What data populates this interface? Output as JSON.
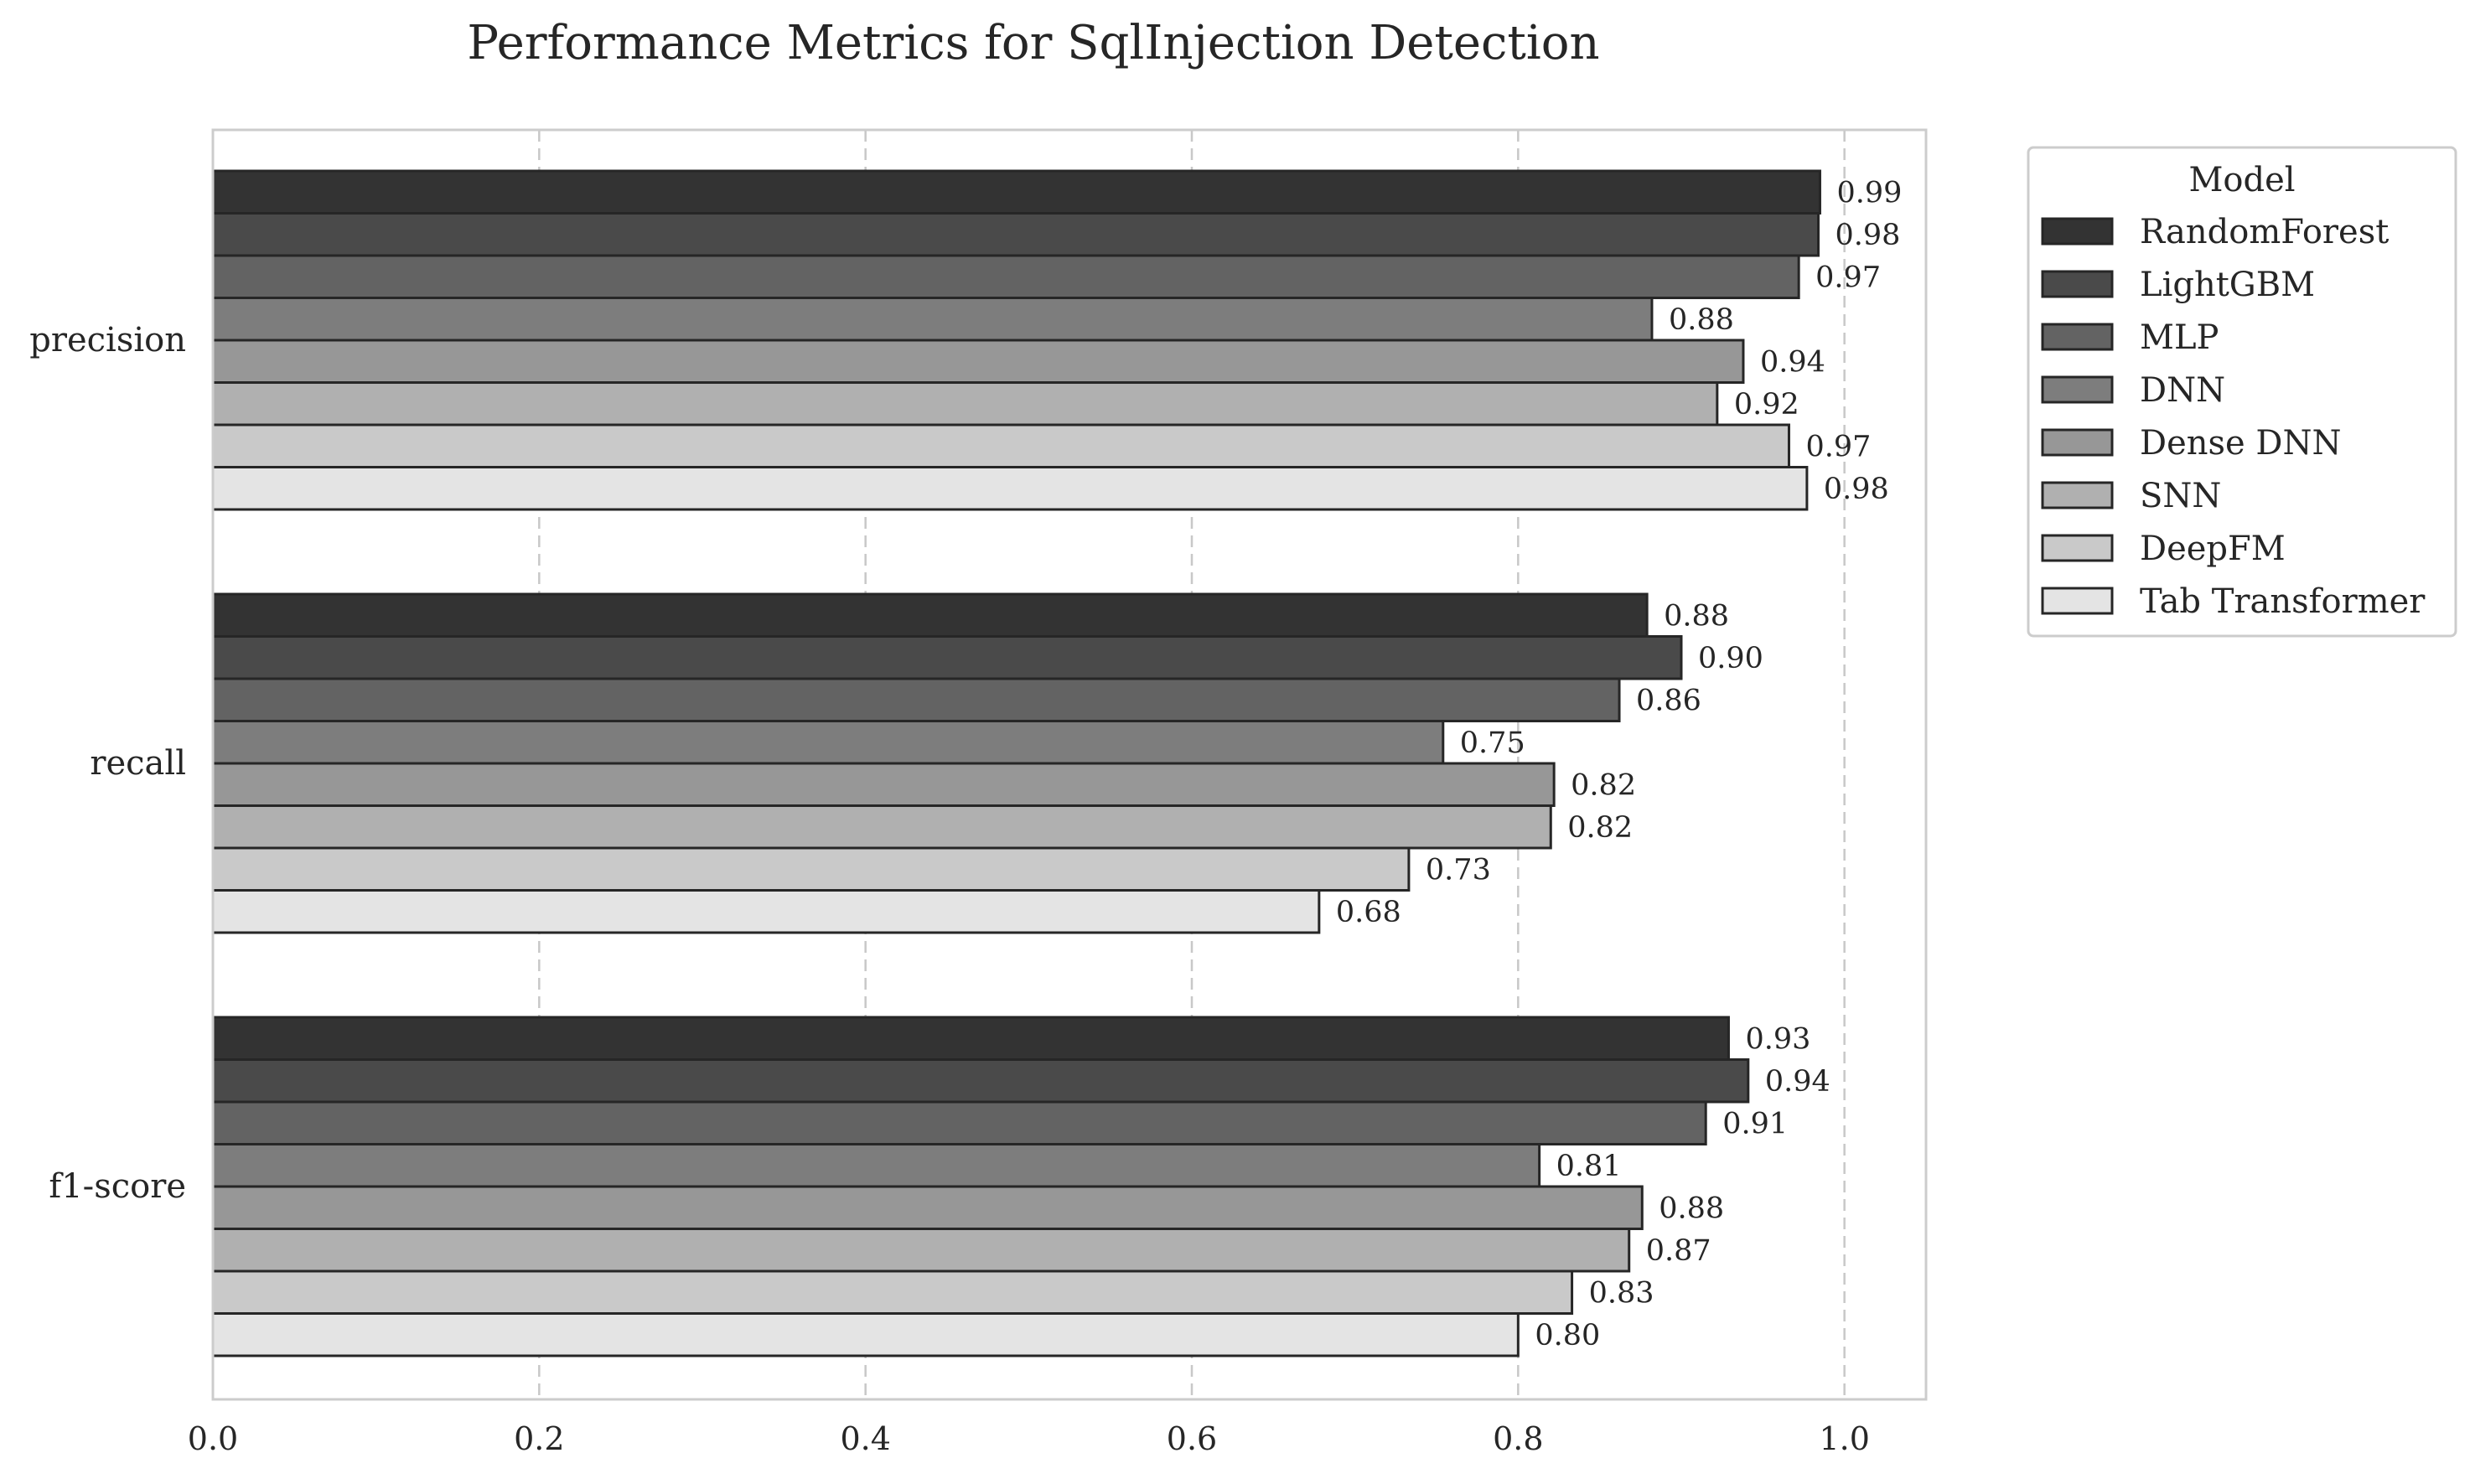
{
  "chart_data": {
    "type": "bar",
    "orientation": "horizontal",
    "title": "Performance Metrics for SqlInjection Detection",
    "xlabel": "",
    "ylabel": "",
    "xlim": [
      0.0,
      1.05
    ],
    "xticks": [
      "0.0",
      "0.2",
      "0.4",
      "0.6",
      "0.8",
      "1.0"
    ],
    "grid": "vertical dashed",
    "categories": [
      "precision",
      "recall",
      "f1-score"
    ],
    "legend": {
      "title": "Model",
      "placement": "outside upper-right"
    },
    "series": [
      {
        "name": "RandomForest",
        "color": "#333333",
        "values": [
          0.985,
          0.879,
          0.929
        ],
        "labels": [
          "0.99",
          "0.88",
          "0.93"
        ]
      },
      {
        "name": "LightGBM",
        "color": "#4a4a4a",
        "values": [
          0.984,
          0.9,
          0.941
        ],
        "labels": [
          "0.98",
          "0.90",
          "0.94"
        ]
      },
      {
        "name": "MLP",
        "color": "#636363",
        "values": [
          0.972,
          0.862,
          0.915
        ],
        "labels": [
          "0.97",
          "0.86",
          "0.91"
        ]
      },
      {
        "name": "DNN",
        "color": "#7d7d7d",
        "values": [
          0.882,
          0.754,
          0.813
        ],
        "labels": [
          "0.88",
          "0.75",
          "0.81"
        ]
      },
      {
        "name": "Dense DNN",
        "color": "#979797",
        "values": [
          0.938,
          0.822,
          0.876
        ],
        "labels": [
          "0.94",
          "0.82",
          "0.88"
        ]
      },
      {
        "name": "SNN",
        "color": "#b0b0b0",
        "values": [
          0.922,
          0.82,
          0.868
        ],
        "labels": [
          "0.92",
          "0.82",
          "0.87"
        ]
      },
      {
        "name": "DeepFM",
        "color": "#c9c9c9",
        "values": [
          0.966,
          0.733,
          0.833
        ],
        "labels": [
          "0.97",
          "0.73",
          "0.83"
        ]
      },
      {
        "name": "Tab Transformer",
        "color": "#e4e4e4",
        "values": [
          0.977,
          0.678,
          0.8
        ],
        "labels": [
          "0.98",
          "0.68",
          "0.80"
        ]
      }
    ]
  }
}
